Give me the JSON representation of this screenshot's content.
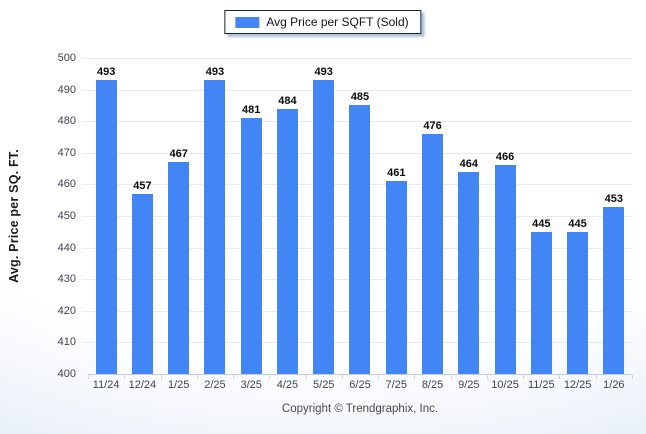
{
  "legend": {
    "label": "Avg Price per SQFT (Sold)",
    "swatch_color": "#4285f4"
  },
  "footer": {
    "copyright": "Copyright © Trendgraphix, Inc."
  },
  "chart_data": {
    "type": "bar",
    "title": "",
    "xlabel": "",
    "ylabel": "Avg. Price per SQ. FT.",
    "categories": [
      "11/24",
      "12/24",
      "1/25",
      "2/25",
      "3/25",
      "4/25",
      "5/25",
      "6/25",
      "7/25",
      "8/25",
      "9/25",
      "10/25",
      "11/25",
      "12/25",
      "1/26"
    ],
    "values": [
      493,
      457,
      467,
      493,
      481,
      484,
      493,
      485,
      461,
      476,
      464,
      466,
      445,
      445,
      453
    ],
    "ylim": [
      400,
      500
    ],
    "ytick_step": 10,
    "bar_color": "#4285f4",
    "grid": true,
    "legend_position": "top-center"
  }
}
